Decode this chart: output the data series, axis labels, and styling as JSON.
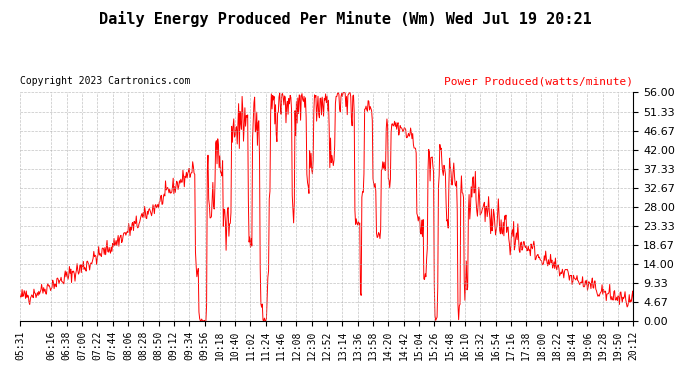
{
  "title": "Daily Energy Produced Per Minute (Wm) Wed Jul 19 20:21",
  "copyright": "Copyright 2023 Cartronics.com",
  "legend_label": "Power Produced(watts/minute)",
  "line_color": "red",
  "bg_color": "white",
  "grid_color": "#aaaaaa",
  "title_color": "black",
  "copyright_color": "black",
  "legend_color": "red",
  "ymin": 0.0,
  "ymax": 56.0,
  "yticks": [
    0.0,
    4.67,
    9.33,
    14.0,
    18.67,
    23.33,
    28.0,
    32.67,
    37.33,
    42.0,
    46.67,
    51.33,
    56.0
  ],
  "xtick_labels": [
    "05:31",
    "06:16",
    "06:38",
    "07:00",
    "07:22",
    "07:44",
    "08:06",
    "08:28",
    "08:50",
    "09:12",
    "09:34",
    "09:56",
    "10:18",
    "10:40",
    "11:02",
    "11:24",
    "11:46",
    "12:08",
    "12:30",
    "12:52",
    "13:14",
    "13:36",
    "13:58",
    "14:20",
    "14:42",
    "15:04",
    "15:26",
    "15:48",
    "16:10",
    "16:32",
    "16:54",
    "17:16",
    "17:38",
    "18:00",
    "18:22",
    "18:44",
    "19:06",
    "19:28",
    "19:50",
    "20:12"
  ],
  "figsize": [
    6.9,
    3.75
  ],
  "dpi": 100
}
